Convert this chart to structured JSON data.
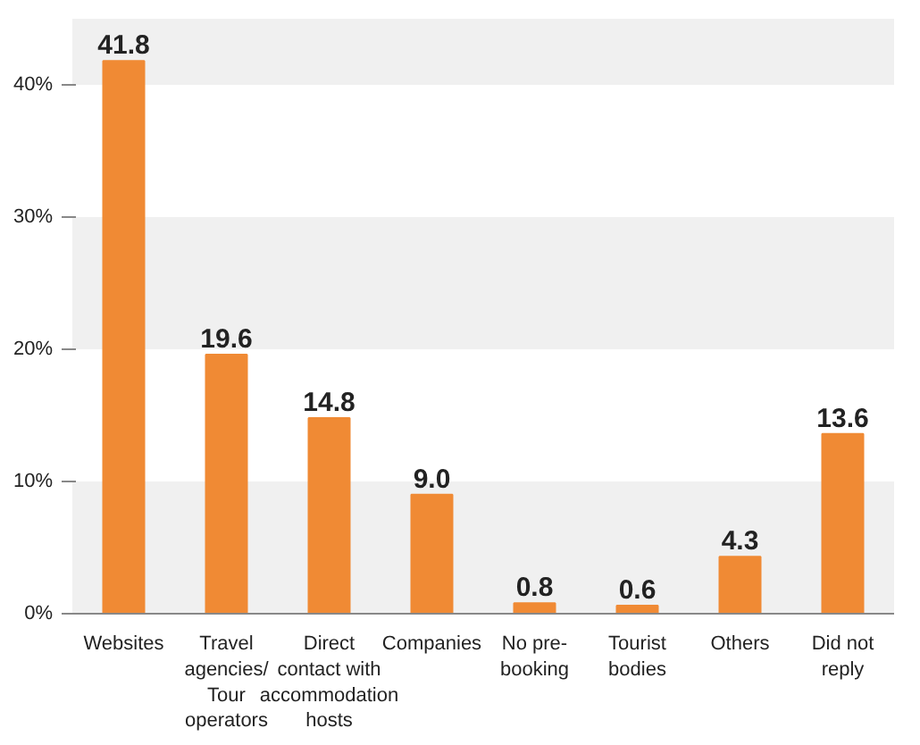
{
  "chart_data": {
    "type": "bar",
    "categories": [
      "Websites",
      "Travel agencies/ Tour operators",
      "Direct contact with accommodation hosts",
      "Companies",
      "No pre-booking",
      "Tourist bodies",
      "Others",
      "Did not reply"
    ],
    "values": [
      41.8,
      19.6,
      14.8,
      9.0,
      0.8,
      0.6,
      4.3,
      13.6
    ],
    "value_labels": [
      "41.8",
      "19.6",
      "14.8",
      "9.0",
      "0.8",
      "0.6",
      "4.3",
      "13.6"
    ],
    "color": "#f08a34",
    "ylim": [
      0,
      45
    ],
    "yticks": [
      {
        "value": 0,
        "label": "0%"
      },
      {
        "value": 10,
        "label": "10%"
      },
      {
        "value": 20,
        "label": "20%"
      },
      {
        "value": 30,
        "label": "30%"
      },
      {
        "value": 40,
        "label": "40%"
      }
    ],
    "bands": [
      {
        "axis": "y",
        "from": 0,
        "to": 10,
        "color": "#f0f0f0"
      },
      {
        "axis": "y",
        "from": 20,
        "to": 30,
        "color": "#f0f0f0"
      },
      {
        "axis": "y",
        "from": 40,
        "to": 45,
        "color": "#f0f0f0"
      }
    ],
    "grid": false
  }
}
